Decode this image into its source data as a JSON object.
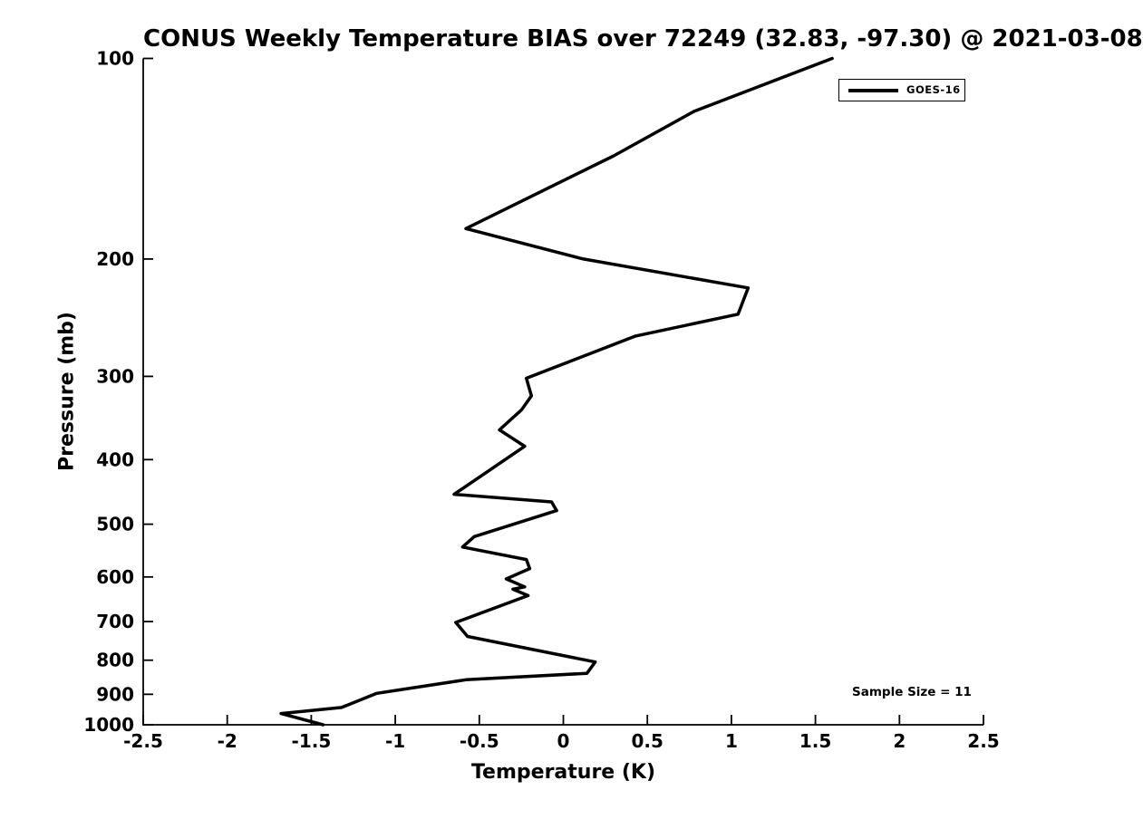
{
  "title": "CONUS Weekly Temperature BIAS over 72249 (32.83, -97.30) @ 2021-03-08",
  "annotation": "Sample Size = 11",
  "colors": {
    "foreground": "#000000",
    "background": "#ffffff"
  },
  "legend": {
    "label": "GOES-16"
  },
  "axis": {
    "xlabel": "Temperature (K)",
    "ylabel": "Pressure (mb)"
  },
  "chart_data": {
    "type": "line",
    "title": "CONUS Weekly Temperature BIAS over 72249 (32.83, -97.30) @ 2021-03-08",
    "xlabel": "Temperature (K)",
    "ylabel": "Pressure (mb)",
    "xlim": [
      -2.5,
      2.5
    ],
    "x_ticks": [
      -2.5,
      -2,
      -1.5,
      -1,
      -0.5,
      0,
      0.5,
      1,
      1.5,
      2,
      2.5
    ],
    "x_tick_labels": [
      "-2.5",
      "-2",
      "-1.5",
      "-1",
      "-0.5",
      "0",
      "0.5",
      "1",
      "1.5",
      "2",
      "2.5"
    ],
    "y_scale": "log",
    "y_inverted": true,
    "ylim": [
      100,
      1000
    ],
    "y_ticks": [
      100,
      200,
      300,
      400,
      500,
      600,
      700,
      800,
      900,
      1000
    ],
    "y_tick_labels": [
      "100",
      "200",
      "300",
      "400",
      "500",
      "600",
      "700",
      "800",
      "900",
      "1000"
    ],
    "grid": false,
    "legend_position": "top-right",
    "annotation": "Sample Size = 11",
    "series": [
      {
        "name": "GOES-16",
        "color": "#000000",
        "line_width": 3.5,
        "points_pressure_mb_vs_bias_k": [
          [
            100,
            1.6
          ],
          [
            120,
            0.78
          ],
          [
            140,
            0.3
          ],
          [
            180,
            -0.58
          ],
          [
            200,
            0.12
          ],
          [
            221,
            1.1
          ],
          [
            242,
            1.04
          ],
          [
            261,
            0.43
          ],
          [
            302,
            -0.22
          ],
          [
            321,
            -0.19
          ],
          [
            337,
            -0.25
          ],
          [
            361,
            -0.38
          ],
          [
            382,
            -0.23
          ],
          [
            451,
            -0.65
          ],
          [
            463,
            -0.07
          ],
          [
            477,
            -0.04
          ],
          [
            522,
            -0.53
          ],
          [
            541,
            -0.6
          ],
          [
            565,
            -0.22
          ],
          [
            583,
            -0.2
          ],
          [
            604,
            -0.34
          ],
          [
            621,
            -0.23
          ],
          [
            626,
            -0.3
          ],
          [
            640,
            -0.21
          ],
          [
            702,
            -0.64
          ],
          [
            737,
            -0.57
          ],
          [
            805,
            0.19
          ],
          [
            837,
            0.14
          ],
          [
            856,
            -0.58
          ],
          [
            897,
            -1.11
          ],
          [
            942,
            -1.32
          ],
          [
            962,
            -1.68
          ],
          [
            1000,
            -1.43
          ]
        ]
      }
    ]
  }
}
